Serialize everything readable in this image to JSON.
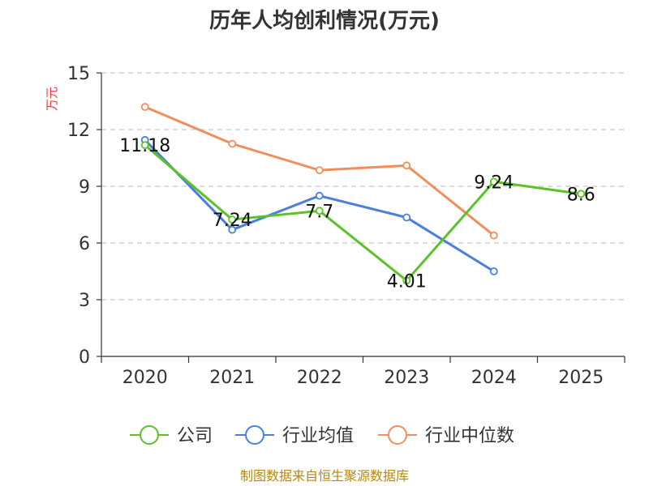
{
  "chart_data": {
    "type": "line",
    "title": "历年人均创利情况(万元)",
    "ylabel": "万元",
    "xlabel": "",
    "categories": [
      "2020",
      "2021",
      "2022",
      "2023",
      "2024",
      "2025"
    ],
    "ylim": [
      0,
      15
    ],
    "yticks": [
      0,
      3,
      6,
      9,
      12,
      15
    ],
    "grid": true,
    "legend_position": "bottom",
    "series": [
      {
        "name": "公司",
        "color": "#5bc228",
        "values": [
          11.18,
          7.24,
          7.7,
          4.01,
          9.24,
          8.6
        ],
        "labels": [
          "11.18",
          "7.24",
          "7.7",
          "4.01",
          "9.24",
          "8.6"
        ]
      },
      {
        "name": "行业均值",
        "color": "#4a7fdb",
        "values": [
          11.45,
          6.7,
          8.5,
          7.35,
          4.5,
          null
        ],
        "labels": []
      },
      {
        "name": "行业中位数",
        "color": "#f28e5b",
        "values": [
          13.2,
          11.25,
          9.85,
          10.1,
          6.4,
          null
        ],
        "labels": []
      }
    ]
  },
  "source_text": "制图数据来自恒生聚源数据库"
}
